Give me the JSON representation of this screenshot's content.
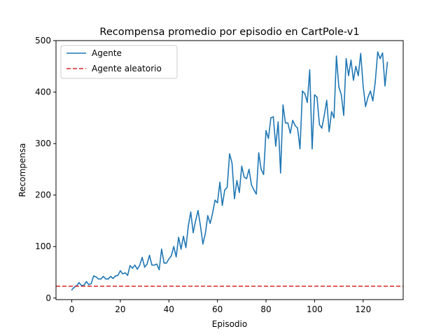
{
  "chart_data": {
    "type": "line",
    "title": "Recompensa promedio por episodio en CartPole-v1",
    "xlabel": "Episodio",
    "ylabel": "Recompensa",
    "xlim": [
      -6.5,
      136.5
    ],
    "ylim": [
      -3,
      500
    ],
    "xticks": [
      0,
      20,
      40,
      60,
      80,
      100,
      120
    ],
    "yticks": [
      0,
      100,
      200,
      300,
      400,
      500
    ],
    "grid": false,
    "legend_position": "upper-left",
    "series": [
      {
        "name": "Agente",
        "color": "#1f77b4",
        "style": "solid",
        "x": [
          0,
          1,
          2,
          3,
          4,
          5,
          6,
          7,
          8,
          9,
          10,
          11,
          12,
          13,
          14,
          15,
          16,
          17,
          18,
          19,
          20,
          21,
          22,
          23,
          24,
          25,
          26,
          27,
          28,
          29,
          30,
          31,
          32,
          33,
          34,
          35,
          36,
          37,
          38,
          39,
          40,
          41,
          42,
          43,
          44,
          45,
          46,
          47,
          48,
          49,
          50,
          51,
          52,
          53,
          54,
          55,
          56,
          57,
          58,
          59,
          60,
          61,
          62,
          63,
          64,
          65,
          66,
          67,
          68,
          69,
          70,
          71,
          72,
          73,
          74,
          75,
          76,
          77,
          78,
          79,
          80,
          81,
          82,
          83,
          84,
          85,
          86,
          87,
          88,
          89,
          90,
          91,
          92,
          93,
          94,
          95,
          96,
          97,
          98,
          99,
          100,
          101,
          102,
          103,
          104,
          105,
          106,
          107,
          108,
          109,
          110,
          111,
          112,
          113,
          114,
          115,
          116,
          117,
          118,
          119,
          120,
          121,
          122,
          123,
          124,
          125,
          126,
          127,
          128,
          129,
          130
        ],
        "y": [
          16,
          21,
          24,
          30,
          24,
          25,
          32,
          26,
          28,
          43,
          41,
          37,
          37,
          42,
          37,
          37,
          42,
          38,
          43,
          44,
          53,
          47,
          49,
          44,
          63,
          58,
          64,
          56,
          64,
          79,
          60,
          66,
          83,
          64,
          64,
          66,
          55,
          95,
          68,
          68,
          76,
          82,
          100,
          80,
          118,
          95,
          120,
          98,
          140,
          167,
          127,
          150,
          170,
          140,
          105,
          125,
          160,
          145,
          165,
          190,
          185,
          225,
          180,
          210,
          215,
          280,
          262,
          193,
          228,
          205,
          256,
          235,
          232,
          250,
          220,
          210,
          202,
          282,
          250,
          240,
          325,
          310,
          350,
          352,
          295,
          342,
          243,
          375,
          340,
          340,
          320,
          345,
          335,
          330,
          290,
          402,
          397,
          380,
          443,
          290,
          395,
          390,
          337,
          330,
          355,
          384,
          323,
          362,
          350,
          470,
          410,
          395,
          355,
          465,
          432,
          462,
          423,
          450,
          432,
          475,
          412,
          372,
          390,
          402,
          383,
          420,
          478,
          465,
          476,
          412,
          458
        ]
      },
      {
        "name": "Agente aleatorio",
        "color": "#d62728",
        "style": "dashed",
        "y_const": 23
      }
    ]
  }
}
